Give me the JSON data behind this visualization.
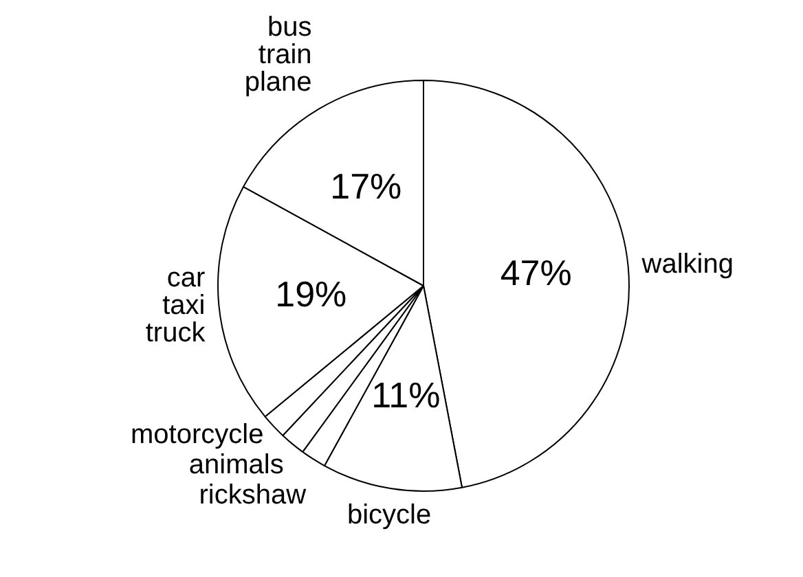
{
  "chart_data": {
    "type": "pie",
    "categories": [
      "walking",
      "bicycle",
      "rickshaw",
      "animals",
      "motorcycle",
      "car taxi truck",
      "bus train plane"
    ],
    "values": [
      47,
      11,
      2,
      2,
      2,
      19,
      17
    ],
    "colors": [
      "#ffffff",
      "#ffffff",
      "#ffffff",
      "#ffffff",
      "#ffffff",
      "#ffffff",
      "#ffffff"
    ],
    "value_labels": [
      "47%",
      "11%",
      null,
      null,
      null,
      "19%",
      "17%"
    ]
  }
}
